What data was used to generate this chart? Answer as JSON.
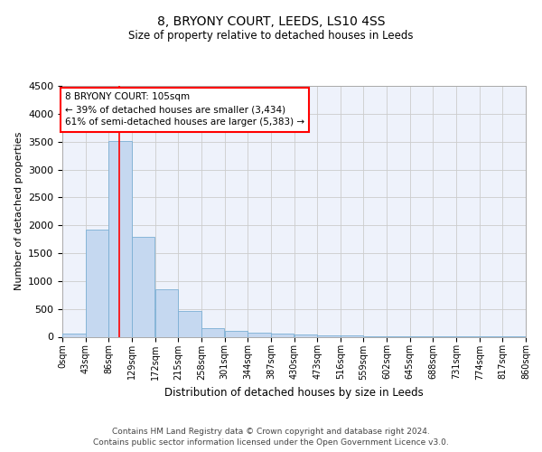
{
  "title": "8, BRYONY COURT, LEEDS, LS10 4SS",
  "subtitle": "Size of property relative to detached houses in Leeds",
  "xlabel": "Distribution of detached houses by size in Leeds",
  "ylabel": "Number of detached properties",
  "bar_color": "#c5d8f0",
  "bar_edge_color": "#7bafd4",
  "grid_color": "#cccccc",
  "background_color": "#ffffff",
  "plot_bg_color": "#eef2fb",
  "red_line_x": 105,
  "annotation_text": "8 BRYONY COURT: 105sqm\n← 39% of detached houses are smaller (3,434)\n61% of semi-detached houses are larger (5,383) →",
  "bin_edges": [
    0,
    43,
    86,
    129,
    172,
    215,
    258,
    301,
    344,
    387,
    430,
    473,
    516,
    559,
    602,
    645,
    688,
    731,
    774,
    817,
    860
  ],
  "bar_heights": [
    50,
    1920,
    3510,
    1790,
    850,
    455,
    160,
    100,
    75,
    55,
    40,
    30,
    20,
    10,
    8,
    5,
    3,
    2,
    1,
    1
  ],
  "ylim": [
    0,
    4500
  ],
  "yticks": [
    0,
    500,
    1000,
    1500,
    2000,
    2500,
    3000,
    3500,
    4000,
    4500
  ],
  "footer_line1": "Contains HM Land Registry data © Crown copyright and database right 2024.",
  "footer_line2": "Contains public sector information licensed under the Open Government Licence v3.0."
}
